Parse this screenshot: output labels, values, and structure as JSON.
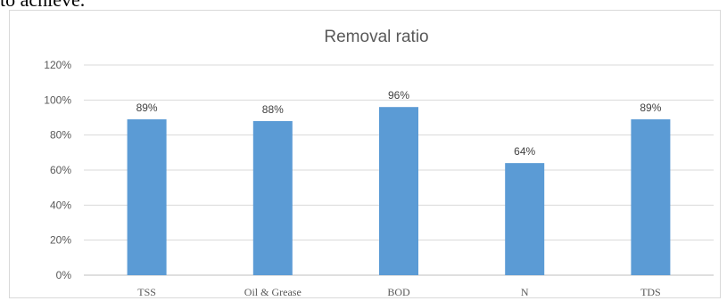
{
  "page": {
    "top_text": "to achieve."
  },
  "chart_data": {
    "type": "bar",
    "title": "Removal ratio",
    "categories": [
      "TSS",
      "Oil & Grease",
      "BOD",
      "N",
      "TDS"
    ],
    "values": [
      89,
      88,
      96,
      64,
      89
    ],
    "data_labels": [
      "89%",
      "88%",
      "96%",
      "64%",
      "89%"
    ],
    "y_ticks": [
      "0%",
      "20%",
      "40%",
      "60%",
      "80%",
      "100%",
      "120%"
    ],
    "ylim": [
      0,
      120
    ],
    "grid": true,
    "legend": "none",
    "colors": {
      "bar": "#5b9bd5",
      "grid": "#d9d9d9",
      "axis": "#bfbfbf"
    }
  }
}
